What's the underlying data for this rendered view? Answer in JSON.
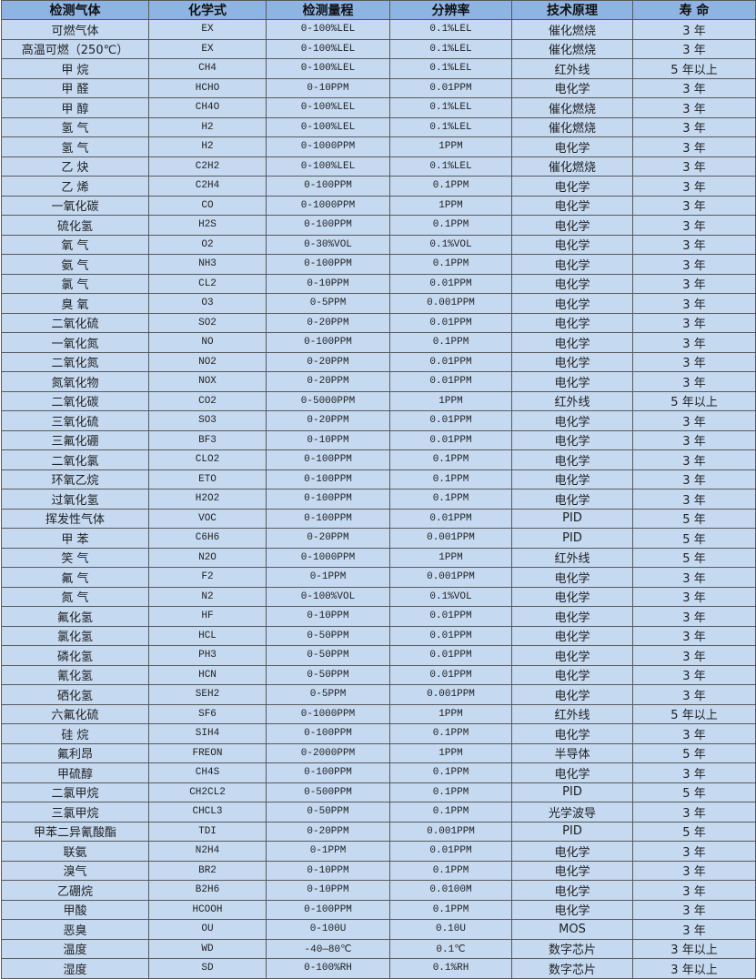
{
  "headers": [
    "检测气体",
    "化学式",
    "检测量程",
    "分辨率",
    "技术原理",
    "寿 命"
  ],
  "rows": [
    [
      "可燃气体",
      "EX",
      "0-100%LEL",
      "0.1%LEL",
      "催化燃烧",
      "3 年"
    ],
    [
      "高温可燃（250℃）",
      "EX",
      "0-100%LEL",
      "0.1%LEL",
      "催化燃烧",
      "3 年"
    ],
    [
      "甲 烷",
      "CH4",
      "0-100%LEL",
      "0.1%LEL",
      "红外线",
      "5 年以上"
    ],
    [
      "甲 醛",
      "HCHO",
      "0-10PPM",
      "0.01PPM",
      "电化学",
      "3 年"
    ],
    [
      "甲 醇",
      "CH4O",
      "0-100%LEL",
      "0.1%LEL",
      "催化燃烧",
      "3 年"
    ],
    [
      "氢 气",
      "H2",
      "0-100%LEL",
      "0.1%LEL",
      "催化燃烧",
      "3 年"
    ],
    [
      "氢 气",
      "H2",
      "0-1000PPM",
      "1PPM",
      "电化学",
      "3 年"
    ],
    [
      "乙 炔",
      "C2H2",
      "0-100%LEL",
      "0.1%LEL",
      "催化燃烧",
      "3 年"
    ],
    [
      "乙 烯",
      "C2H4",
      "0-100PPM",
      "0.1PPM",
      "电化学",
      "3 年"
    ],
    [
      "一氧化碳",
      "CO",
      "0-1000PPM",
      "1PPM",
      "电化学",
      "3 年"
    ],
    [
      "硫化氢",
      "H2S",
      "0-100PPM",
      "0.1PPM",
      "电化学",
      "3 年"
    ],
    [
      "氧 气",
      "O2",
      "0-30%VOL",
      "0.1%VOL",
      "电化学",
      "3 年"
    ],
    [
      "氨 气",
      "NH3",
      "0-100PPM",
      "0.1PPM",
      "电化学",
      "3 年"
    ],
    [
      "氯 气",
      "CL2",
      "0-10PPM",
      "0.01PPM",
      "电化学",
      "3 年"
    ],
    [
      "臭 氧",
      "O3",
      "0-5PPM",
      "0.001PPM",
      "电化学",
      "3 年"
    ],
    [
      "二氧化硫",
      "SO2",
      "0-20PPM",
      "0.01PPM",
      "电化学",
      "3 年"
    ],
    [
      "一氧化氮",
      "NO",
      "0-100PPM",
      "0.1PPM",
      "电化学",
      "3 年"
    ],
    [
      "二氧化氮",
      "NO2",
      "0-20PPM",
      "0.01PPM",
      "电化学",
      "3 年"
    ],
    [
      "氮氧化物",
      "NOX",
      "0-20PPM",
      "0.01PPM",
      "电化学",
      "3 年"
    ],
    [
      "二氧化碳",
      "CO2",
      "0-5000PPM",
      "1PPM",
      "红外线",
      "5 年以上"
    ],
    [
      "三氧化硫",
      "SO3",
      "0-20PPM",
      "0.01PPM",
      "电化学",
      "3 年"
    ],
    [
      "三氟化硼",
      "BF3",
      "0-10PPM",
      "0.01PPM",
      "电化学",
      "3 年"
    ],
    [
      "二氧化氯",
      "CLO2",
      "0-100PPM",
      "0.1PPM",
      "电化学",
      "3 年"
    ],
    [
      "环氧乙烷",
      "ETO",
      "0-100PPM",
      "0.1PPM",
      "电化学",
      "3 年"
    ],
    [
      "过氧化氢",
      "H2O2",
      "0-100PPM",
      "0.1PPM",
      "电化学",
      "3 年"
    ],
    [
      "挥发性气体",
      "VOC",
      "0-100PPM",
      "0.01PPM",
      "PID",
      "5 年"
    ],
    [
      "甲 苯",
      "C6H6",
      "0-20PPM",
      "0.001PPM",
      "PID",
      "5 年"
    ],
    [
      "笑 气",
      "N2O",
      "0-1000PPM",
      "1PPM",
      "红外线",
      "5 年"
    ],
    [
      "氟 气",
      "F2",
      "0-1PPM",
      "0.001PPM",
      "电化学",
      "3 年"
    ],
    [
      "氮 气",
      "N2",
      "0-100%VOL",
      "0.1%VOL",
      "电化学",
      "3 年"
    ],
    [
      "氟化氢",
      "HF",
      "0-10PPM",
      "0.01PPM",
      "电化学",
      "3 年"
    ],
    [
      "氯化氢",
      "HCL",
      "0-50PPM",
      "0.01PPM",
      "电化学",
      "3 年"
    ],
    [
      "磷化氢",
      "PH3",
      "0-50PPM",
      "0.01PPM",
      "电化学",
      "3 年"
    ],
    [
      "氰化氢",
      "HCN",
      "0-50PPM",
      "0.01PPM",
      "电化学",
      "3 年"
    ],
    [
      "硒化氢",
      "SEH2",
      "0-5PPM",
      "0.001PPM",
      "电化学",
      "3 年"
    ],
    [
      "六氟化硫",
      "SF6",
      "0-1000PPM",
      "1PPM",
      "红外线",
      "5 年以上"
    ],
    [
      "硅 烷",
      "SIH4",
      "0-100PPM",
      "0.1PPM",
      "电化学",
      "3 年"
    ],
    [
      "氟利昂",
      "FREON",
      "0-2000PPM",
      "1PPM",
      "半导体",
      "5 年"
    ],
    [
      "甲硫醇",
      "CH4S",
      "0-100PPM",
      "0.1PPM",
      "电化学",
      "3 年"
    ],
    [
      "二氯甲烷",
      "CH2CL2",
      "0-500PPM",
      "0.1PPM",
      "PID",
      "5 年"
    ],
    [
      "三氯甲烷",
      "CHCL3",
      "0-50PPM",
      "0.1PPM",
      "光学波导",
      "3 年"
    ],
    [
      "甲苯二异氰酸酯",
      "TDI",
      "0-20PPM",
      "0.001PPM",
      "PID",
      "5 年"
    ],
    [
      "联氨",
      "N2H4",
      "0-1PPM",
      "0.01PPM",
      "电化学",
      "3 年"
    ],
    [
      "溴气",
      "BR2",
      "0-10PPM",
      "0.1PPM",
      "电化学",
      "3 年"
    ],
    [
      "乙硼烷",
      "B2H6",
      "0-10PPM",
      "0.0100M",
      "电化学",
      "3 年"
    ],
    [
      "甲酸",
      "HCOOH",
      "0-100PPM",
      "0.1PPM",
      "电化学",
      "3 年"
    ],
    [
      "恶臭",
      "OU",
      "0-100U",
      "0.10U",
      "MOS",
      "3 年"
    ],
    [
      "温度",
      "WD",
      "-40—80℃",
      "0.1℃",
      "数字芯片",
      "3 年以上"
    ],
    [
      "湿度",
      "SD",
      "0-100%RH",
      "0.1%RH",
      "数字芯片",
      "3 年以上"
    ]
  ]
}
